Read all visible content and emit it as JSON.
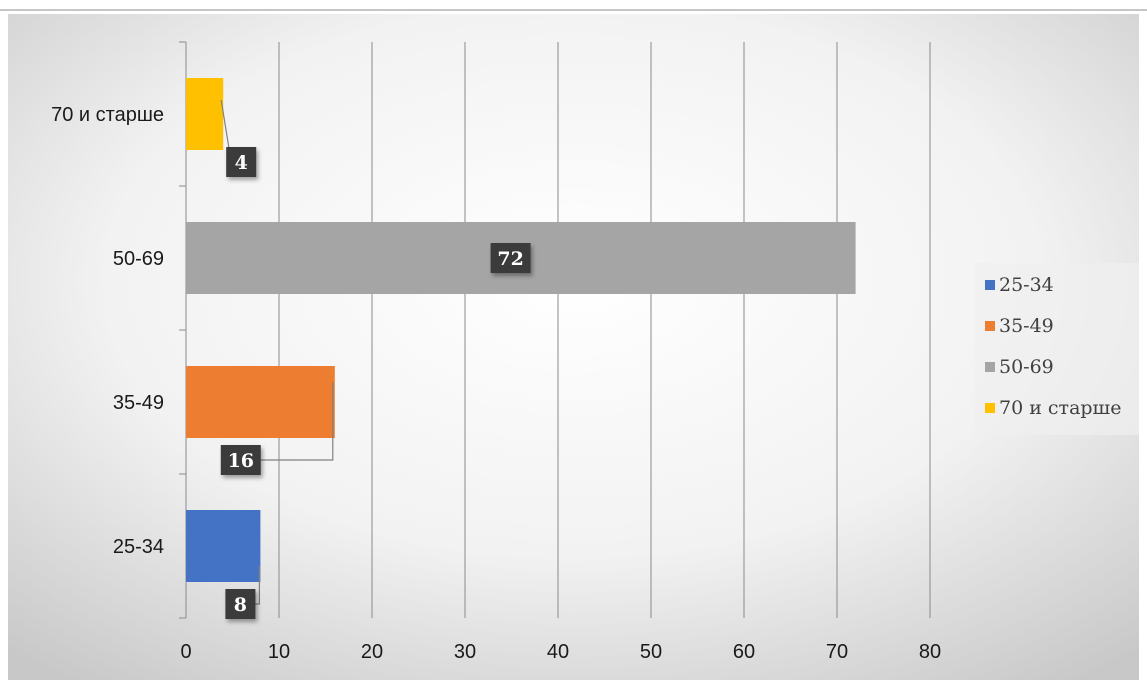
{
  "chart_data": {
    "type": "bar",
    "orientation": "horizontal",
    "categories": [
      "25-34",
      "35-49",
      "50-69",
      "70 и старше"
    ],
    "values": [
      8,
      16,
      72,
      4
    ],
    "colors": [
      "#4472C4",
      "#ED7D31",
      "#A5A5A5",
      "#FFC000"
    ],
    "xlim": [
      0,
      80
    ],
    "xticks": [
      "0",
      "10",
      "20",
      "30",
      "40",
      "50",
      "60",
      "70",
      "80"
    ],
    "grid": "vertical",
    "legend": {
      "position": "right",
      "entries": [
        "25-34",
        "35-49",
        "50-69",
        "70 и старше"
      ]
    },
    "data_labels": [
      "8",
      "16",
      "72",
      "4"
    ],
    "background": "radial-gradient white-to-gray"
  }
}
